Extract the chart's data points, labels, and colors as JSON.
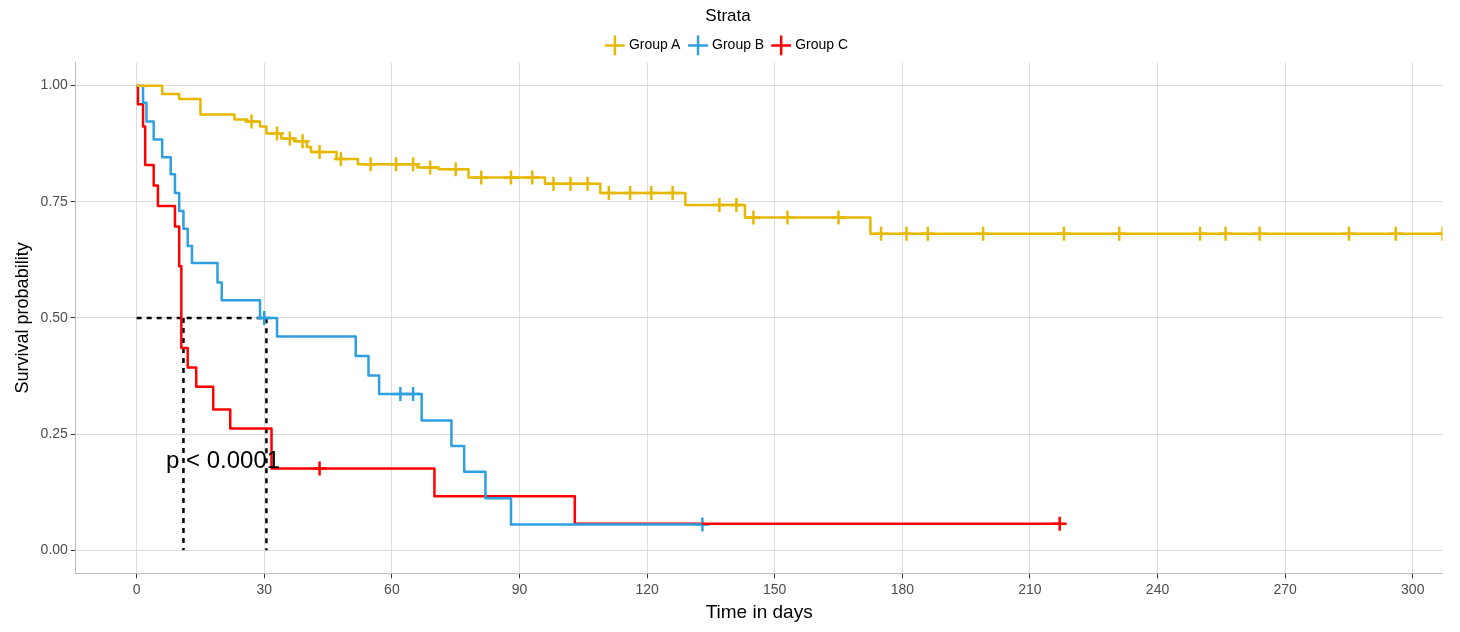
{
  "chart_data": {
    "type": "step",
    "xlabel": "Time in days",
    "ylabel": "Survival probability",
    "legend_title": "Strata",
    "legend": "top",
    "grid": true,
    "xlim": [
      -14.3,
      307
    ],
    "xticks": [
      0,
      30,
      60,
      90,
      120,
      150,
      180,
      210,
      240,
      270,
      300
    ],
    "ylim": [
      -0.05,
      1.05
    ],
    "yticks": [
      {
        "value": 0,
        "label": "0.00"
      },
      {
        "value": 0.25,
        "label": "0.25"
      },
      {
        "value": 0.5,
        "label": "0.50"
      },
      {
        "value": 0.75,
        "label": "0.75"
      },
      {
        "value": 1,
        "label": "1.00"
      }
    ],
    "annotations": [
      "p < 0.0001"
    ],
    "series": [
      {
        "name": "Group A",
        "marker": "none",
        "color": "#e7b800",
        "x": [
          0,
          6,
          10,
          15,
          23,
          26,
          29,
          30.5,
          34,
          37,
          40,
          41,
          47,
          52,
          66,
          71,
          78,
          96,
          109,
          129,
          143,
          172.5,
          307
        ],
        "values": [
          1.0,
          0.982,
          0.971,
          0.938,
          0.927,
          0.923,
          0.912,
          0.897,
          0.886,
          0.88,
          0.868,
          0.857,
          0.842,
          0.831,
          0.824,
          0.82,
          0.802,
          0.789,
          0.769,
          0.743,
          0.716,
          0.681,
          0.681
        ]
      },
      {
        "name": "Group B",
        "marker": "none",
        "color": "#2e9fdf",
        "x": [
          0.7,
          1.5,
          2.3,
          4,
          6,
          8,
          9,
          10,
          11,
          12,
          13,
          19,
          20,
          29,
          33,
          51.5,
          54.5,
          57,
          67,
          74,
          77,
          82,
          88,
          133
        ],
        "values": [
          1.0,
          0.963,
          0.923,
          0.884,
          0.846,
          0.809,
          0.769,
          0.73,
          0.692,
          0.655,
          0.618,
          0.576,
          0.538,
          0.5,
          0.46,
          0.418,
          0.376,
          0.336,
          0.279,
          0.224,
          0.169,
          0.112,
          0.055,
          0.055
        ]
      },
      {
        "name": "Group C",
        "marker": "none",
        "color": "#ff0000",
        "x": [
          0,
          0.3,
          1.5,
          2,
          4,
          5,
          9,
          10,
          10.5,
          12,
          14,
          18,
          22,
          31.7,
          70,
          103,
          217
        ],
        "values": [
          1.0,
          0.96,
          0.912,
          0.829,
          0.785,
          0.741,
          0.697,
          0.611,
          0.435,
          0.393,
          0.352,
          0.303,
          0.262,
          0.176,
          0.116,
          0.057,
          0.057
        ]
      },
      {
        "type": "scatter",
        "marker": "cross",
        "color": "#e7b800",
        "x": [
          27,
          33,
          36,
          39,
          43,
          48,
          55,
          61,
          65,
          69,
          75,
          81,
          88,
          93,
          98,
          102,
          106,
          111,
          116,
          121,
          126,
          137,
          141,
          145,
          153,
          165,
          175,
          181,
          186,
          199,
          218,
          231,
          250,
          256,
          264,
          285,
          296,
          307
        ],
        "values": [
          0.923,
          0.897,
          0.886,
          0.88,
          0.857,
          0.842,
          0.831,
          0.831,
          0.831,
          0.824,
          0.82,
          0.802,
          0.802,
          0.802,
          0.789,
          0.789,
          0.789,
          0.769,
          0.769,
          0.769,
          0.769,
          0.743,
          0.743,
          0.716,
          0.716,
          0.716,
          0.681,
          0.681,
          0.681,
          0.681,
          0.681,
          0.681,
          0.681,
          0.681,
          0.681,
          0.681,
          0.681,
          0.681
        ]
      },
      {
        "type": "scatter",
        "marker": "cross",
        "color": "#2e9fdf",
        "x": [
          30,
          62,
          65,
          133
        ],
        "values": [
          0.5,
          0.336,
          0.336,
          0.055
        ]
      },
      {
        "type": "scatter",
        "marker": "cross",
        "color": "#ff0000",
        "x": [
          43,
          217
        ],
        "values": [
          0.176,
          0.057
        ]
      },
      {
        "type": "line",
        "marker": "none",
        "line_style": "dashed",
        "color": "#000000",
        "x": [
          0,
          30.5,
          30.5
        ],
        "values": [
          0.5,
          0.5,
          0
        ]
      },
      {
        "type": "line",
        "marker": "none",
        "line_style": "dashed",
        "color": "#000000",
        "x": [
          11,
          11
        ],
        "values": [
          0.5,
          0
        ]
      }
    ]
  }
}
